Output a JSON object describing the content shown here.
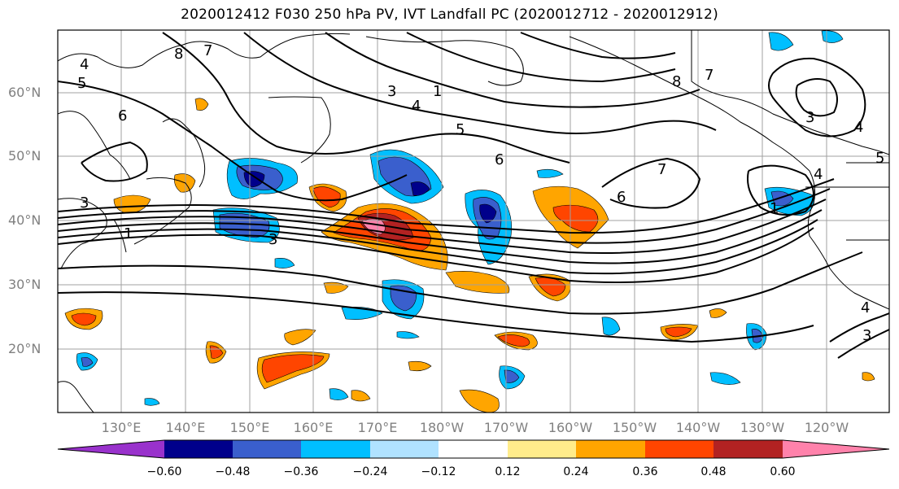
{
  "title": "2020012412 F030 250 hPa PV, IVT Landfall PC (2020012712 - 2020012912)",
  "map": {
    "lat_labels": [
      "60°N",
      "50°N",
      "40°N",
      "30°N",
      "20°N"
    ],
    "lon_labels": [
      "130°E",
      "140°E",
      "150°E",
      "160°E",
      "170°E",
      "180°W",
      "170°W",
      "160°W",
      "150°W",
      "140°W",
      "130°W",
      "120°W"
    ],
    "contour_labels": [
      "1",
      "3",
      "4",
      "5",
      "6",
      "7",
      "8"
    ]
  },
  "colorbar": {
    "tick_labels": [
      "−0.60",
      "−0.48",
      "−0.36",
      "−0.24",
      "−0.12",
      "0.12",
      "0.24",
      "0.36",
      "0.48",
      "0.60"
    ],
    "colors": [
      "#9932cc",
      "#00008b",
      "#3a5fcd",
      "#00bfff",
      "#b0e2ff",
      "#ffffff",
      "#ffec8b",
      "#ffa500",
      "#ff4500",
      "#b22222",
      "#ff82ab"
    ]
  }
}
